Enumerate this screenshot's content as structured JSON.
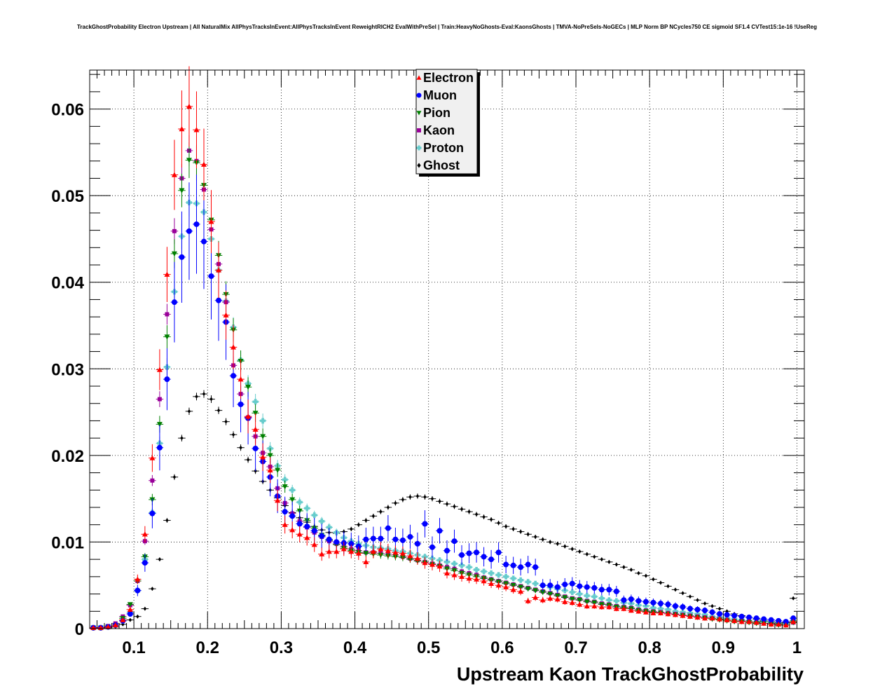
{
  "chart_data": {
    "type": "scatter",
    "title": "TrackGhostProbability Electron Upstream | All NaturalMix AllPhysTracksInEvent:AllPhysTracksInEvent ReweightRICH2 EvalWithPreSel | Train:HeavyNoGhosts-Eval:KaonsGhosts | TMVA-NoPreSels-NoGECs | MLP Norm BP NCycles750 CE sigmoid SF1.4 CVTest15:1e-16 !UseReg",
    "xlabel": "Upstream Kaon TrackGhostProbability",
    "ylabel": "",
    "xlim": [
      0.04,
      1.01
    ],
    "ylim": [
      0,
      0.0645
    ],
    "grid": true,
    "legend_position": "top-center",
    "x_ticks": [
      0.1,
      0.2,
      0.3,
      0.4,
      0.5,
      0.6,
      0.7,
      0.8,
      0.9,
      1
    ],
    "x_tick_labels": [
      "0.1",
      "0.2",
      "0.3",
      "0.4",
      "0.5",
      "0.6",
      "0.7",
      "0.8",
      "0.9",
      "1"
    ],
    "y_ticks": [
      0,
      0.01,
      0.02,
      0.03,
      0.04,
      0.05,
      0.06
    ],
    "y_tick_labels": [
      "0",
      "0.01",
      "0.02",
      "0.03",
      "0.04",
      "0.05",
      "0.06"
    ],
    "x": [
      0.045,
      0.055,
      0.065,
      0.075,
      0.085,
      0.095,
      0.105,
      0.115,
      0.125,
      0.135,
      0.145,
      0.155,
      0.165,
      0.175,
      0.185,
      0.195,
      0.205,
      0.215,
      0.225,
      0.235,
      0.245,
      0.255,
      0.265,
      0.275,
      0.285,
      0.295,
      0.305,
      0.315,
      0.325,
      0.335,
      0.345,
      0.355,
      0.365,
      0.375,
      0.385,
      0.395,
      0.405,
      0.415,
      0.425,
      0.435,
      0.445,
      0.455,
      0.465,
      0.475,
      0.485,
      0.495,
      0.505,
      0.515,
      0.525,
      0.535,
      0.545,
      0.555,
      0.565,
      0.575,
      0.585,
      0.595,
      0.605,
      0.615,
      0.625,
      0.635,
      0.645,
      0.655,
      0.665,
      0.675,
      0.685,
      0.695,
      0.705,
      0.715,
      0.725,
      0.735,
      0.745,
      0.755,
      0.765,
      0.775,
      0.785,
      0.795,
      0.805,
      0.815,
      0.825,
      0.835,
      0.845,
      0.855,
      0.865,
      0.875,
      0.885,
      0.895,
      0.905,
      0.915,
      0.925,
      0.935,
      0.945,
      0.955,
      0.965,
      0.975,
      0.985,
      0.995
    ],
    "series": [
      {
        "name": "Electron",
        "marker": "triangle-up",
        "color": "#ff0000",
        "values": [
          0.0001,
          0.0001,
          0.0002,
          0.0004,
          0.001,
          0.0022,
          0.0057,
          0.0109,
          0.0197,
          0.0299,
          0.0409,
          0.0524,
          0.0577,
          0.0603,
          0.0576,
          0.0536,
          0.047,
          0.0414,
          0.0362,
          0.0325,
          0.0288,
          0.0245,
          0.023,
          0.0198,
          0.0183,
          0.0148,
          0.012,
          0.0114,
          0.0109,
          0.0105,
          0.0097,
          0.0086,
          0.0089,
          0.0089,
          0.0092,
          0.0089,
          0.0087,
          0.0077,
          0.0089,
          0.0092,
          0.009,
          0.0088,
          0.0087,
          0.0084,
          0.0081,
          0.0076,
          0.0074,
          0.0072,
          0.0064,
          0.0062,
          0.006,
          0.0058,
          0.0057,
          0.0055,
          0.0052,
          0.005,
          0.0048,
          0.0045,
          0.0043,
          0.0032,
          0.0036,
          0.0033,
          0.0035,
          0.0034,
          0.0031,
          0.003,
          0.0028,
          0.0026,
          0.0026,
          0.0025,
          0.0025,
          0.0023,
          0.0023,
          0.0021,
          0.002,
          0.0019,
          0.0018,
          0.0018,
          0.0017,
          0.0016,
          0.0015,
          0.0014,
          0.0013,
          0.0012,
          0.0012,
          0.0011,
          0.001,
          0.0009,
          0.0008,
          0.0008,
          0.0007,
          0.0006,
          0.0005,
          0.0005,
          0.0004,
          0.0008
        ]
      },
      {
        "name": "Muon",
        "marker": "circle",
        "color": "#0000ff",
        "values": [
          0.0001,
          0.0001,
          0.0002,
          0.0004,
          0.0009,
          0.0017,
          0.0044,
          0.0076,
          0.0133,
          0.0209,
          0.0288,
          0.0377,
          0.0429,
          0.0459,
          0.0467,
          0.0447,
          0.0407,
          0.0379,
          0.0354,
          0.0292,
          0.0259,
          0.0243,
          0.0208,
          0.0193,
          0.0175,
          0.0153,
          0.0135,
          0.013,
          0.0121,
          0.0118,
          0.0113,
          0.0107,
          0.0103,
          0.01,
          0.0099,
          0.0098,
          0.0095,
          0.0103,
          0.0104,
          0.0104,
          0.0116,
          0.0103,
          0.0102,
          0.0106,
          0.0098,
          0.0121,
          0.0094,
          0.0113,
          0.009,
          0.0101,
          0.0085,
          0.0087,
          0.0088,
          0.0083,
          0.008,
          0.0088,
          0.0074,
          0.0073,
          0.0071,
          0.0074,
          0.0071,
          0.005,
          0.005,
          0.0048,
          0.0051,
          0.0052,
          0.0049,
          0.0048,
          0.0047,
          0.0045,
          0.0045,
          0.0043,
          0.0033,
          0.0034,
          0.0032,
          0.0031,
          0.003,
          0.0029,
          0.0028,
          0.0026,
          0.0025,
          0.0023,
          0.0022,
          0.0021,
          0.0019,
          0.0017,
          0.0016,
          0.0015,
          0.0014,
          0.0013,
          0.0012,
          0.0011,
          0.001,
          0.0009,
          0.0008,
          0.0012
        ]
      },
      {
        "name": "Pion",
        "marker": "triangle-down",
        "color": "#008000",
        "values": [
          0.0001,
          0.0001,
          0.0002,
          0.0004,
          0.0012,
          0.0028,
          0.0055,
          0.0083,
          0.0149,
          0.0236,
          0.0337,
          0.0433,
          0.0506,
          0.0541,
          0.0538,
          0.0512,
          0.0472,
          0.0431,
          0.0386,
          0.0345,
          0.0309,
          0.0279,
          0.0249,
          0.0222,
          0.02,
          0.0183,
          0.0164,
          0.0149,
          0.0136,
          0.0125,
          0.0116,
          0.0108,
          0.0102,
          0.0097,
          0.0093,
          0.009,
          0.0088,
          0.0087,
          0.0086,
          0.0085,
          0.0084,
          0.0083,
          0.0082,
          0.008,
          0.0078,
          0.0076,
          0.0074,
          0.0072,
          0.0069,
          0.0067,
          0.0064,
          0.0062,
          0.006,
          0.0058,
          0.0056,
          0.0054,
          0.0052,
          0.005,
          0.0048,
          0.0046,
          0.0044,
          0.0042,
          0.004,
          0.0038,
          0.0036,
          0.0034,
          0.0033,
          0.0031,
          0.003,
          0.0028,
          0.0027,
          0.0025,
          0.0024,
          0.0023,
          0.0021,
          0.002,
          0.0019,
          0.0018,
          0.0017,
          0.0016,
          0.0015,
          0.0014,
          0.0013,
          0.0012,
          0.0011,
          0.001,
          0.0009,
          0.0008,
          0.0008,
          0.0007,
          0.0006,
          0.0006,
          0.0005,
          0.0004,
          0.0004,
          0.0007
        ]
      },
      {
        "name": "Kaon",
        "marker": "square",
        "color": "#990099",
        "values": [
          0.0001,
          0.0001,
          0.0003,
          0.0006,
          0.0014,
          0.0027,
          0.0055,
          0.0101,
          0.0171,
          0.0265,
          0.0363,
          0.0459,
          0.052,
          0.0552,
          0.054,
          0.0507,
          0.0461,
          0.0421,
          0.0377,
          0.0304,
          0.0271,
          0.0244,
          0.0222,
          0.0203,
          0.0187,
          0.0162,
          0.0145,
          0.0133,
          0.0124,
          0.0117,
          0.0111,
          0.0106,
          0.0101,
          0.0098,
          0.0095,
          0.0092,
          0.009,
          0.0088,
          0.0088,
          0.0087,
          0.0086,
          0.0085,
          0.0083,
          0.0081,
          0.0079,
          0.0077,
          0.0075,
          0.0073,
          0.0071,
          0.0069,
          0.0066,
          0.0064,
          0.0062,
          0.0059,
          0.0057,
          0.0055,
          0.0053,
          0.0051,
          0.0049,
          0.0047,
          0.0045,
          0.0043,
          0.0041,
          0.0039,
          0.0037,
          0.0035,
          0.0034,
          0.0032,
          0.0031,
          0.0029,
          0.0028,
          0.0026,
          0.0025,
          0.0024,
          0.0022,
          0.0021,
          0.002,
          0.0019,
          0.0018,
          0.0017,
          0.0016,
          0.0015,
          0.0014,
          0.0013,
          0.0012,
          0.0011,
          0.001,
          0.0009,
          0.0009,
          0.0008,
          0.0007,
          0.0006,
          0.0006,
          0.0005,
          0.0004,
          0.0007
        ]
      },
      {
        "name": "Proton",
        "marker": "cross",
        "color": "#66cccc",
        "values": [
          0.0001,
          0.0001,
          0.0002,
          0.0004,
          0.0009,
          0.0019,
          0.0044,
          0.008,
          0.0134,
          0.0214,
          0.0302,
          0.0389,
          0.0453,
          0.0492,
          0.0491,
          0.0481,
          0.045,
          0.0414,
          0.0378,
          0.0348,
          0.031,
          0.0283,
          0.0262,
          0.024,
          0.0208,
          0.0188,
          0.0172,
          0.016,
          0.0146,
          0.0139,
          0.0131,
          0.0124,
          0.0117,
          0.0111,
          0.0105,
          0.0101,
          0.0098,
          0.0096,
          0.0094,
          0.0093,
          0.0092,
          0.009,
          0.0089,
          0.0087,
          0.0085,
          0.0083,
          0.0081,
          0.0079,
          0.0077,
          0.0075,
          0.0073,
          0.0071,
          0.0068,
          0.0066,
          0.0064,
          0.0062,
          0.006,
          0.0058,
          0.0056,
          0.0054,
          0.0052,
          0.005,
          0.0048,
          0.0046,
          0.0044,
          0.0042,
          0.004,
          0.0038,
          0.0037,
          0.0035,
          0.0033,
          0.0032,
          0.003,
          0.0029,
          0.0027,
          0.0026,
          0.0024,
          0.0023,
          0.0022,
          0.002,
          0.0019,
          0.0018,
          0.0017,
          0.0016,
          0.0014,
          0.0013,
          0.0012,
          0.0011,
          0.001,
          0.0009,
          0.0008,
          0.0008,
          0.0007,
          0.0006,
          0.0005,
          0.0009
        ]
      },
      {
        "name": "Ghost",
        "marker": "diamond",
        "color": "#000000",
        "values": [
          0.0001,
          0.0001,
          0.0001,
          0.0002,
          0.0005,
          0.001,
          0.0014,
          0.0023,
          0.0046,
          0.008,
          0.0125,
          0.0175,
          0.022,
          0.0251,
          0.0268,
          0.0271,
          0.0265,
          0.0252,
          0.0239,
          0.0224,
          0.0209,
          0.0195,
          0.0182,
          0.017,
          0.016,
          0.0151,
          0.0142,
          0.0134,
          0.0128,
          0.0123,
          0.0118,
          0.0114,
          0.0111,
          0.011,
          0.0112,
          0.0115,
          0.012,
          0.0125,
          0.013,
          0.0135,
          0.014,
          0.0145,
          0.0149,
          0.0152,
          0.0153,
          0.0152,
          0.015,
          0.0147,
          0.0144,
          0.0141,
          0.0138,
          0.0135,
          0.0132,
          0.0129,
          0.0126,
          0.0122,
          0.0118,
          0.0115,
          0.0112,
          0.0109,
          0.0106,
          0.0103,
          0.01,
          0.0098,
          0.0095,
          0.0092,
          0.0089,
          0.0086,
          0.0083,
          0.008,
          0.0077,
          0.0074,
          0.0071,
          0.0068,
          0.0064,
          0.0061,
          0.0057,
          0.0053,
          0.0049,
          0.0045,
          0.0041,
          0.0037,
          0.0033,
          0.0029,
          0.0026,
          0.0023,
          0.002,
          0.0017,
          0.0015,
          0.0013,
          0.0011,
          0.0009,
          0.0008,
          0.0007,
          0.0007,
          0.0035
        ]
      }
    ]
  }
}
